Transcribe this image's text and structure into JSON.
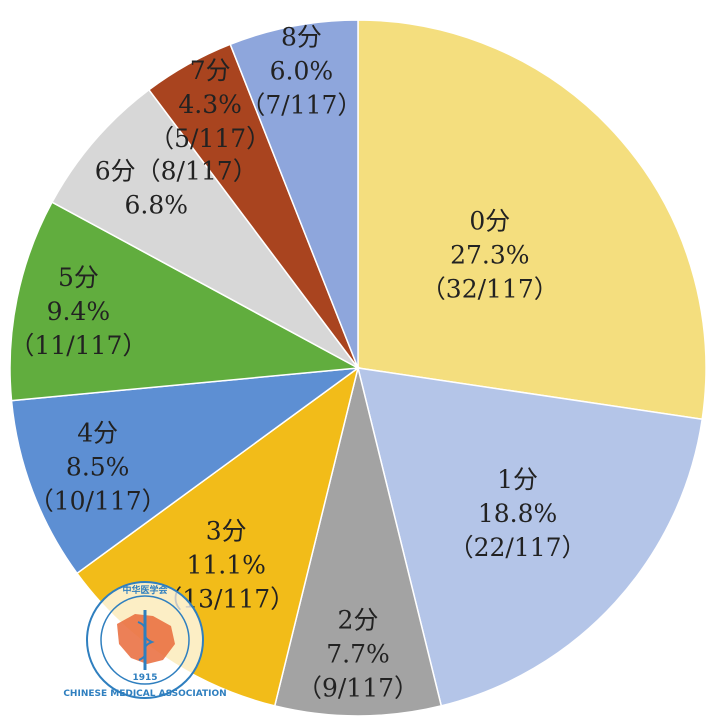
{
  "chart_data": {
    "type": "pie",
    "slices": [
      {
        "category": "0分",
        "percent_label": "27.3%",
        "count_label": "（32/117）",
        "value": 32,
        "color": "#f4de7e"
      },
      {
        "category": "1分",
        "percent_label": "18.8%",
        "count_label": "（22/117）",
        "value": 22,
        "color": "#b4c5e8"
      },
      {
        "category": "2分",
        "percent_label": "7.7%",
        "count_label": "（9/117）",
        "value": 9,
        "color": "#a3a3a3"
      },
      {
        "category": "3分",
        "percent_label": "11.1%",
        "count_label": "（13/117）",
        "value": 13,
        "color": "#f2bc19"
      },
      {
        "category": "4分",
        "percent_label": "8.5%",
        "count_label": "（10/117）",
        "value": 10,
        "color": "#5d8fd3"
      },
      {
        "category": "5分",
        "percent_label": "9.4%",
        "count_label": "（11/117）",
        "value": 11,
        "color": "#61ad3e"
      },
      {
        "category": "6分",
        "percent_label": "6.8%",
        "count_label": "（8/117）",
        "value": 8,
        "color": "#d7d7d7"
      },
      {
        "category": "7分",
        "percent_label": "4.3%",
        "count_label": "（5/117）",
        "value": 5,
        "color": "#a9441f"
      },
      {
        "category": "8分",
        "percent_label": "6.0%",
        "count_label": "（7/117）",
        "value": 7,
        "color": "#8ea6dc"
      }
    ],
    "total": 117
  },
  "watermark": {
    "name": "chinese-medical-association-logo",
    "text_top": "中华医学会",
    "text_bottom": "CHINESE MEDICAL ASSOCIATION",
    "year": "1915",
    "color": "#2f7fbf"
  }
}
